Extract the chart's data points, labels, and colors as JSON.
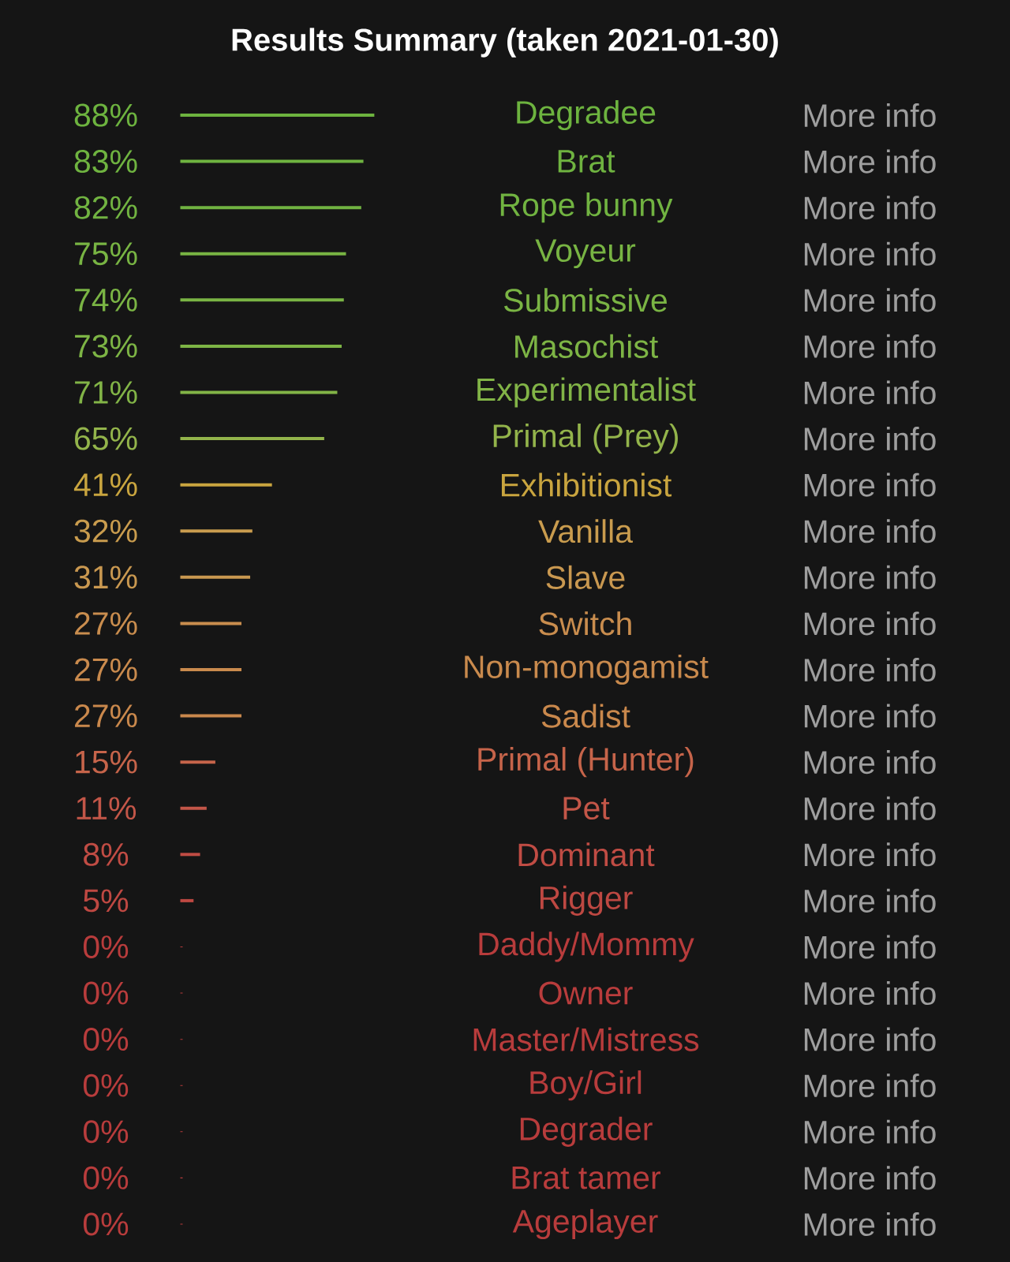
{
  "chart_data": {
    "type": "bar",
    "orientation": "horizontal",
    "title": "Results Summary (taken 2021-01-30)",
    "categories": [
      "Degradee",
      "Brat",
      "Rope bunny",
      "Voyeur",
      "Submissive",
      "Masochist",
      "Experimentalist",
      "Primal (Prey)",
      "Exhibitionist",
      "Vanilla",
      "Slave",
      "Switch",
      "Non-monogamist",
      "Sadist",
      "Primal (Hunter)",
      "Pet",
      "Dominant",
      "Rigger",
      "Daddy/Mommy",
      "Owner",
      "Master/Mistress",
      "Boy/Girl",
      "Degrader",
      "Brat tamer",
      "Ageplayer"
    ],
    "values": [
      88,
      83,
      82,
      75,
      74,
      73,
      71,
      65,
      41,
      32,
      31,
      27,
      27,
      27,
      15,
      11,
      8,
      5,
      0,
      0,
      0,
      0,
      0,
      0,
      0
    ],
    "colors": [
      "#6db33f",
      "#6fb340",
      "#71b341",
      "#78b443",
      "#7ab444",
      "#7db445",
      "#82b447",
      "#93b44b",
      "#c9a53f",
      "#c99c4e",
      "#c99850",
      "#c98d4e",
      "#c98a4d",
      "#c9884c",
      "#c6644a",
      "#c35648",
      "#c04c44",
      "#be4842",
      "#b83c3c",
      "#b83c3c",
      "#b83c3c",
      "#b83c3c",
      "#b83c3c",
      "#b83c3c",
      "#b83c3c"
    ],
    "value_labels": [
      "88%",
      "83%",
      "82%",
      "75%",
      "74%",
      "73%",
      "71%",
      "65%",
      "41%",
      "32%",
      "31%",
      "27%",
      "27%",
      "27%",
      "15%",
      "11%",
      "8%",
      "5%",
      "0%",
      "0%",
      "0%",
      "0%",
      "0%",
      "0%",
      "0%"
    ],
    "annotations": [
      "More info",
      "More info",
      "More info",
      "More info",
      "More info",
      "More info",
      "More info",
      "More info",
      "More info",
      "More info",
      "More info",
      "More info",
      "More info",
      "More info",
      "More info",
      "More info",
      "More info",
      "More info",
      "More info",
      "More info",
      "More info",
      "More info",
      "More info",
      "More info",
      "More info"
    ]
  }
}
